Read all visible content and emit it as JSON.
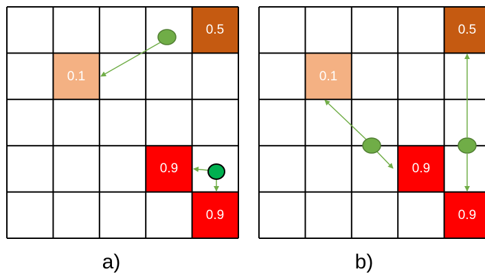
{
  "panels": [
    {
      "caption": "a)",
      "cells": [
        {
          "label": "0.5"
        },
        {
          "label": "0.1"
        },
        {
          "label": "0.9"
        },
        {
          "label": "0.9"
        }
      ]
    },
    {
      "caption": "b)",
      "cells": [
        {
          "label": "0.5"
        },
        {
          "label": "0.1"
        },
        {
          "label": "0.9"
        },
        {
          "label": "0.9"
        }
      ]
    }
  ]
}
